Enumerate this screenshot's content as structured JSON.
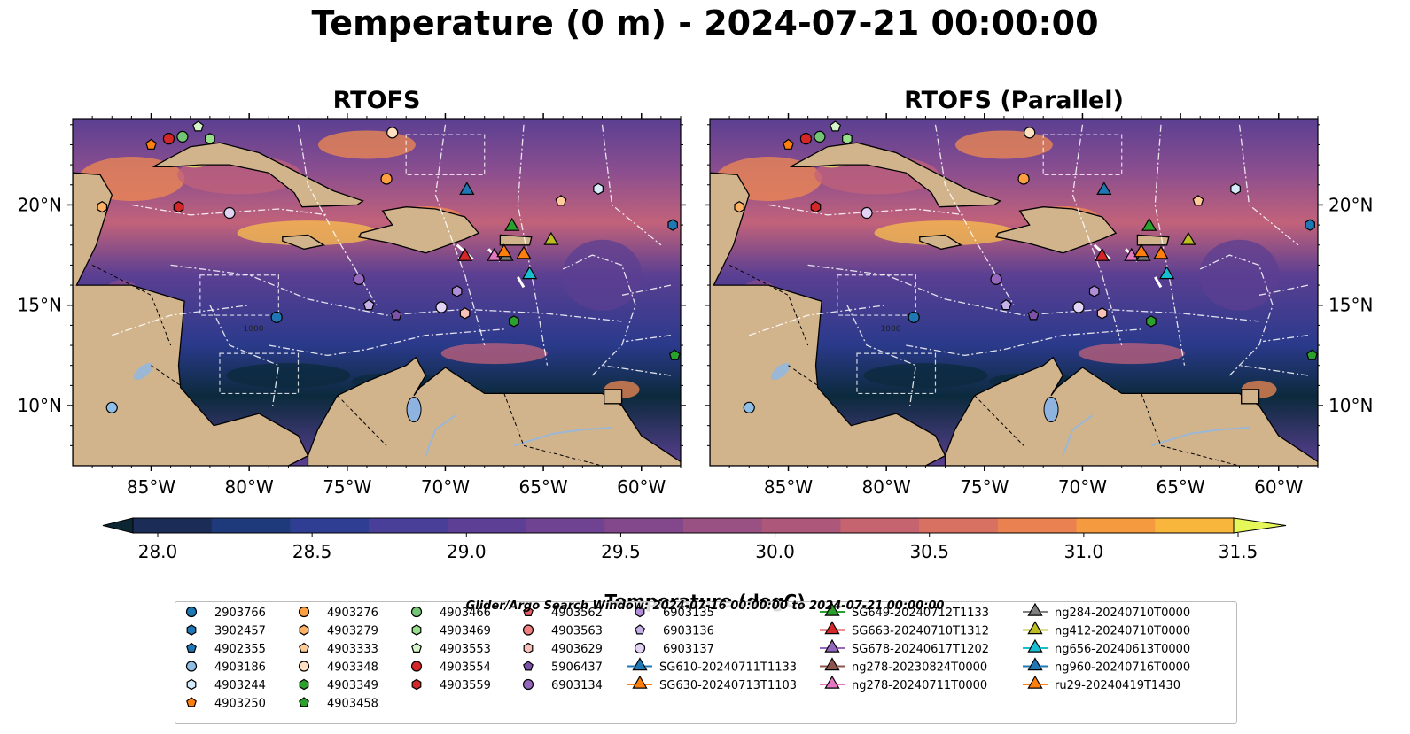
{
  "title": "Temperature (0 m) - 2024-07-21 00:00:00",
  "panels": [
    {
      "title": "RTOFS"
    },
    {
      "title": "RTOFS (Parallel)"
    }
  ],
  "map": {
    "lon_ticks": [
      "85°W",
      "80°W",
      "75°W",
      "70°W",
      "65°W",
      "60°W"
    ],
    "lat_ticks": [
      "20°N",
      "15°N",
      "10°N"
    ],
    "land_color": "#d2b48c",
    "lake_color": "#8fb3e0",
    "river_color": "#9ab7d6",
    "ocean_colors": [
      "#0b2a3c",
      "#2b3a8c",
      "#5b3f92",
      "#8a4e8f",
      "#c2627a",
      "#f08a50",
      "#f8c04c",
      "#e8f560"
    ],
    "contour_label": "1000"
  },
  "colorbar": {
    "label": "Temperature (degC)",
    "ticks": [
      "28.0",
      "28.5",
      "29.0",
      "29.5",
      "30.0",
      "30.5",
      "31.0",
      "31.5"
    ],
    "min": 28.0,
    "max": 31.5,
    "step": 0.25,
    "colors": [
      "#1b2d57",
      "#1f3a7a",
      "#2f3e93",
      "#4a3f98",
      "#5e3f96",
      "#6f4391",
      "#83488b",
      "#995083",
      "#ad587a",
      "#c5646f",
      "#d97163",
      "#ea8150",
      "#f59a3e",
      "#f8b73c"
    ],
    "under_color": "#0c2633",
    "over_color": "#e6f75a"
  },
  "search_window": "Glider/Argo Search Window: 2024-07-16 00:00:00 to 2024-07-21 00:00:00",
  "legend": {
    "columns": [
      [
        {
          "label": "2903766",
          "marker": "circle",
          "color": "#1f77b4"
        },
        {
          "label": "3902457",
          "marker": "hexagon",
          "color": "#1f77b4"
        },
        {
          "label": "4902355",
          "marker": "pentagon",
          "color": "#1f77b4"
        },
        {
          "label": "4903186",
          "marker": "circle",
          "color": "#8fbfe6"
        },
        {
          "label": "4903244",
          "marker": "hexagon",
          "color": "#d6ecfa"
        },
        {
          "label": "4903250",
          "marker": "pentagon",
          "color": "#ff7f0e"
        }
      ],
      [
        {
          "label": "4903276",
          "marker": "circle",
          "color": "#ff9f40"
        },
        {
          "label": "4903279",
          "marker": "hexagon",
          "color": "#ffb266"
        },
        {
          "label": "4903333",
          "marker": "pentagon",
          "color": "#ffcc99"
        },
        {
          "label": "4903348",
          "marker": "circle",
          "color": "#ffe0c0"
        },
        {
          "label": "4903349",
          "marker": "hexagon",
          "color": "#2ca02c"
        },
        {
          "label": "4903458",
          "marker": "pentagon",
          "color": "#2ca02c"
        }
      ],
      [
        {
          "label": "4903466",
          "marker": "circle",
          "color": "#74c476"
        },
        {
          "label": "4903469",
          "marker": "hexagon",
          "color": "#98df8a"
        },
        {
          "label": "4903553",
          "marker": "pentagon",
          "color": "#d5f5c9"
        },
        {
          "label": "4903554",
          "marker": "circle",
          "color": "#d62728"
        },
        {
          "label": "4903559",
          "marker": "hexagon",
          "color": "#d62728"
        }
      ],
      [
        {
          "label": "4903562",
          "marker": "pentagon",
          "color": "#e8606a"
        },
        {
          "label": "4903563",
          "marker": "circle",
          "color": "#f08080"
        },
        {
          "label": "4903629",
          "marker": "hexagon",
          "color": "#f8c0b8"
        },
        {
          "label": "5906437",
          "marker": "pentagon",
          "color": "#7b52a8"
        },
        {
          "label": "6903134",
          "marker": "circle",
          "color": "#9467bd"
        }
      ],
      [
        {
          "label": "6903135",
          "marker": "hexagon",
          "color": "#b08fd8"
        },
        {
          "label": "6903136",
          "marker": "pentagon",
          "color": "#c5b0e8"
        },
        {
          "label": "6903137",
          "marker": "circle",
          "color": "#e2d3f5"
        },
        {
          "label": "SG610-20240711T1133",
          "marker": "triangle",
          "color": "#1f77b4"
        },
        {
          "label": "SG630-20240713T1103",
          "marker": "triangle",
          "color": "#ff7f0e"
        }
      ],
      [
        {
          "label": "SG649-20240712T1133",
          "marker": "triangle",
          "color": "#2ca02c"
        },
        {
          "label": "SG663-20240710T1312",
          "marker": "triangle",
          "color": "#d62728"
        },
        {
          "label": "SG678-20240617T1202",
          "marker": "triangle",
          "color": "#9467bd"
        },
        {
          "label": "ng278-20230824T0000",
          "marker": "triangle",
          "color": "#8c564b"
        },
        {
          "label": "ng278-20240711T0000",
          "marker": "triangle",
          "color": "#e377c2"
        }
      ],
      [
        {
          "label": "ng284-20240710T0000",
          "marker": "triangle",
          "color": "#7f7f7f"
        },
        {
          "label": "ng412-20240710T0000",
          "marker": "triangle",
          "color": "#bcbd22"
        },
        {
          "label": "ng656-20240613T0000",
          "marker": "triangle",
          "color": "#17becf"
        },
        {
          "label": "ng960-20240716T0000",
          "marker": "triangle",
          "color": "#1f77b4"
        },
        {
          "label": "ru29-20240419T1430",
          "marker": "triangle",
          "color": "#ff7f0e"
        }
      ]
    ]
  },
  "observations": [
    {
      "id": "4903250",
      "lon": -85.0,
      "lat": 23.0
    },
    {
      "id": "4903554",
      "lon": -84.1,
      "lat": 23.3
    },
    {
      "id": "4903466",
      "lon": -83.4,
      "lat": 23.4
    },
    {
      "id": "4903553",
      "lon": -82.6,
      "lat": 23.9
    },
    {
      "id": "4903469",
      "lon": -82.0,
      "lat": 23.3
    },
    {
      "id": "4903348",
      "lon": -72.7,
      "lat": 23.6
    },
    {
      "id": "4903276",
      "lon": -73.0,
      "lat": 21.3
    },
    {
      "id": "4903244",
      "lon": -62.2,
      "lat": 20.8
    },
    {
      "id": "4903333",
      "lon": -64.1,
      "lat": 20.2
    },
    {
      "id": "3902457",
      "lon": -58.4,
      "lat": 19.0
    },
    {
      "id": "4903279",
      "lon": -87.5,
      "lat": 19.9
    },
    {
      "id": "4903559",
      "lon": -83.6,
      "lat": 19.9
    },
    {
      "id": "4903137",
      "lon": -81.0,
      "lat": 19.6
    },
    {
      "id": "6903134",
      "lon": -74.4,
      "lat": 16.3
    },
    {
      "id": "6903136",
      "lon": -73.9,
      "lat": 15.0
    },
    {
      "id": "5906437",
      "lon": -72.5,
      "lat": 14.5
    },
    {
      "id": "6903135",
      "lon": -69.4,
      "lat": 15.7
    },
    {
      "id": "6903137b",
      "lon": -70.2,
      "lat": 14.9
    },
    {
      "id": "4903629",
      "lon": -69.0,
      "lat": 14.6
    },
    {
      "id": "2903766",
      "lon": -78.6,
      "lat": 14.4
    },
    {
      "id": "4903349",
      "lon": -66.5,
      "lat": 14.2
    },
    {
      "id": "4903458",
      "lon": -58.3,
      "lat": 12.5
    },
    {
      "id": "4903186",
      "lon": -87.0,
      "lat": 9.9
    },
    {
      "id": "ng960-20240716T0000",
      "lon": -68.9,
      "lat": 20.8
    },
    {
      "id": "SG649-20240712T1133",
      "lon": -66.6,
      "lat": 19.0
    },
    {
      "id": "ng412-20240710T0000",
      "lon": -64.6,
      "lat": 18.3
    },
    {
      "id": "SG663-20240710T1312",
      "lon": -69.0,
      "lat": 17.5
    },
    {
      "id": "ng278-20240711T0000",
      "lon": -67.5,
      "lat": 17.5
    },
    {
      "id": "ng284-20240710T0000",
      "lon": -66.9,
      "lat": 17.5
    },
    {
      "id": "SG630-20240713T1103",
      "lon": -67.0,
      "lat": 17.7
    },
    {
      "id": "ru29-20240419T1430",
      "lon": -66.0,
      "lat": 17.6
    },
    {
      "id": "ng656-20240613T0000",
      "lon": -65.7,
      "lat": 16.6
    }
  ]
}
